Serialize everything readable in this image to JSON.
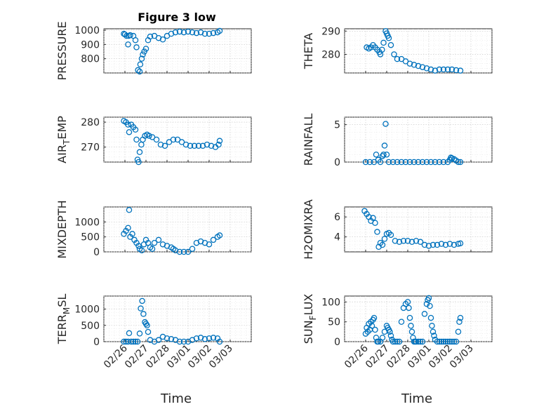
{
  "figure": {
    "title": "Figure 3 low",
    "xlabel": "Time",
    "marker_color": "#0072bd"
  },
  "chart_data": [
    {
      "type": "scatter",
      "ylabel_parts": [
        "PRESSURE"
      ],
      "ylim": [
        700,
        1010
      ],
      "yticks": [
        800,
        900,
        1000
      ],
      "xlim": [
        0,
        7
      ],
      "xticks": [
        1,
        2,
        3,
        4,
        5,
        6
      ],
      "xticklabels": [
        "02/26",
        "02/27",
        "02/28",
        "03/01",
        "03/02",
        "03/03"
      ],
      "grid": true,
      "x": [
        0.95,
        1.0,
        1.08,
        1.15,
        1.18,
        1.25,
        1.4,
        1.5,
        1.55,
        1.62,
        1.7,
        1.73,
        1.8,
        1.85,
        1.92,
        2.0,
        2.1,
        2.2,
        2.4,
        2.6,
        2.8,
        3.0,
        3.2,
        3.4,
        3.6,
        3.8,
        4.0,
        4.2,
        4.4,
        4.6,
        4.8,
        5.0,
        5.2,
        5.4,
        5.5
      ],
      "y": [
        975,
        970,
        960,
        900,
        960,
        965,
        960,
        930,
        880,
        720,
        710,
        760,
        800,
        830,
        850,
        870,
        930,
        955,
        960,
        945,
        935,
        960,
        975,
        985,
        990,
        985,
        990,
        985,
        980,
        985,
        975,
        975,
        980,
        985,
        995
      ]
    },
    {
      "type": "scatter",
      "ylabel_parts": [
        "THETA"
      ],
      "ylim": [
        272,
        291
      ],
      "yticks": [
        280,
        290
      ],
      "xlim": [
        0,
        7
      ],
      "xticks": [
        1,
        2,
        3,
        4,
        5,
        6
      ],
      "xticklabels": [
        "02/26",
        "02/27",
        "02/28",
        "03/01",
        "03/02",
        "03/03"
      ],
      "grid": true,
      "x": [
        1.05,
        1.15,
        1.25,
        1.35,
        1.45,
        1.55,
        1.65,
        1.7,
        1.78,
        1.85,
        1.95,
        2.0,
        2.05,
        2.1,
        2.2,
        2.35,
        2.5,
        2.7,
        2.9,
        3.1,
        3.3,
        3.5,
        3.7,
        3.9,
        4.1,
        4.3,
        4.5,
        4.7,
        4.9,
        5.1,
        5.3,
        5.5
      ],
      "y": [
        283,
        282.5,
        283,
        284,
        283,
        282,
        281,
        280,
        282,
        285,
        290,
        289,
        288,
        287,
        284,
        280,
        278,
        278,
        277,
        276,
        275.5,
        275,
        274.5,
        274,
        273.5,
        273,
        273.5,
        273.5,
        273.5,
        273.5,
        273.2,
        273
      ]
    },
    {
      "type": "scatter",
      "ylabel_parts": [
        "AIR",
        "T",
        "EMP"
      ],
      "ylim": [
        264,
        282
      ],
      "yticks": [
        270,
        280
      ],
      "xlim": [
        0,
        7
      ],
      "xticks": [
        1,
        2,
        3,
        4,
        5,
        6
      ],
      "xticklabels": [
        "02/26",
        "02/27",
        "02/28",
        "03/01",
        "03/02",
        "03/03"
      ],
      "grid": true,
      "x": [
        0.95,
        1.05,
        1.15,
        1.2,
        1.3,
        1.4,
        1.5,
        1.55,
        1.6,
        1.65,
        1.7,
        1.78,
        1.85,
        1.95,
        2.05,
        2.15,
        2.3,
        2.5,
        2.7,
        2.9,
        3.1,
        3.3,
        3.5,
        3.7,
        3.9,
        4.1,
        4.3,
        4.5,
        4.7,
        4.9,
        5.1,
        5.3,
        5.45,
        5.5
      ],
      "y": [
        280.5,
        280,
        279,
        276,
        279,
        278,
        277,
        273,
        265,
        264,
        268,
        271,
        273,
        274.5,
        275,
        274.5,
        274,
        273,
        271,
        270.5,
        272,
        273,
        273,
        272,
        271,
        270.5,
        270.5,
        270.5,
        270.5,
        271,
        270.5,
        270,
        271,
        272.5
      ]
    },
    {
      "type": "scatter",
      "ylabel_parts": [
        "RAINFALL"
      ],
      "ylim": [
        0,
        6
      ],
      "yticks": [
        0,
        5
      ],
      "xlim": [
        0,
        7
      ],
      "xticks": [
        1,
        2,
        3,
        4,
        5,
        6
      ],
      "xticklabels": [
        "02/26",
        "02/27",
        "02/28",
        "03/01",
        "03/02",
        "03/03"
      ],
      "grid": true,
      "x": [
        1.0,
        1.2,
        1.4,
        1.5,
        1.6,
        1.7,
        1.8,
        1.85,
        1.9,
        1.95,
        2.0,
        2.1,
        2.3,
        2.5,
        2.7,
        2.9,
        3.1,
        3.3,
        3.5,
        3.7,
        3.9,
        4.1,
        4.3,
        4.5,
        4.7,
        4.9,
        5.0,
        5.05,
        5.1,
        5.2,
        5.3,
        5.4,
        5.5
      ],
      "y": [
        0,
        0,
        0,
        1.0,
        0.3,
        0,
        0.8,
        1.0,
        2.2,
        5.1,
        1.0,
        0,
        0,
        0,
        0,
        0,
        0,
        0,
        0,
        0,
        0,
        0,
        0,
        0,
        0,
        0,
        0.3,
        0.6,
        0.5,
        0.4,
        0.2,
        0,
        0
      ]
    },
    {
      "type": "scatter",
      "ylabel_parts": [
        "MIXDEPTH"
      ],
      "ylim": [
        0,
        1500
      ],
      "yticks": [
        0,
        500,
        1000
      ],
      "xlim": [
        0,
        7
      ],
      "xticks": [
        1,
        2,
        3,
        4,
        5,
        6
      ],
      "xticklabels": [
        "02/26",
        "02/27",
        "02/28",
        "03/01",
        "03/02",
        "03/03"
      ],
      "grid": true,
      "x": [
        0.95,
        1.05,
        1.15,
        1.2,
        1.25,
        1.35,
        1.45,
        1.55,
        1.65,
        1.7,
        1.8,
        1.9,
        2.0,
        2.1,
        2.2,
        2.3,
        2.4,
        2.6,
        2.8,
        3.0,
        3.2,
        3.3,
        3.4,
        3.6,
        3.8,
        4.0,
        4.2,
        4.4,
        4.6,
        4.8,
        5.0,
        5.2,
        5.4,
        5.5
      ],
      "y": [
        600,
        700,
        800,
        1400,
        500,
        600,
        400,
        300,
        200,
        100,
        50,
        250,
        400,
        300,
        150,
        100,
        300,
        400,
        250,
        200,
        150,
        100,
        50,
        0,
        0,
        0,
        100,
        300,
        350,
        300,
        250,
        400,
        500,
        550
      ]
    },
    {
      "type": "scatter",
      "ylabel_parts": [
        "H2OMIXRA"
      ],
      "ylim": [
        2.5,
        7
      ],
      "yticks": [
        4,
        6
      ],
      "xlim": [
        0,
        7
      ],
      "xticks": [
        1,
        2,
        3,
        4,
        5,
        6
      ],
      "xticklabels": [
        "02/26",
        "02/27",
        "02/28",
        "03/01",
        "03/02",
        "03/03"
      ],
      "grid": true,
      "x": [
        0.95,
        1.05,
        1.15,
        1.25,
        1.35,
        1.45,
        1.55,
        1.62,
        1.7,
        1.8,
        1.9,
        2.0,
        2.1,
        2.2,
        2.4,
        2.6,
        2.8,
        3.0,
        3.2,
        3.4,
        3.6,
        3.8,
        4.0,
        4.2,
        4.4,
        4.6,
        4.8,
        5.0,
        5.2,
        5.4,
        5.5
      ],
      "y": [
        6.6,
        6.3,
        6.0,
        5.6,
        5.9,
        5.4,
        4.5,
        3.0,
        3.4,
        3.2,
        3.8,
        4.3,
        4.4,
        4.2,
        3.6,
        3.5,
        3.6,
        3.6,
        3.5,
        3.6,
        3.5,
        3.2,
        3.1,
        3.2,
        3.2,
        3.3,
        3.2,
        3.3,
        3.2,
        3.3,
        3.35
      ]
    },
    {
      "type": "scatter",
      "ylabel_parts": [
        "TERR",
        "M",
        "SL"
      ],
      "ylim": [
        0,
        1400
      ],
      "yticks": [
        0,
        500,
        1000
      ],
      "xlim": [
        0,
        7
      ],
      "xticks": [
        1,
        2,
        3,
        4,
        5,
        6
      ],
      "xticklabels": [
        "02/26",
        "02/27",
        "02/28",
        "03/01",
        "03/02",
        "03/03"
      ],
      "grid": true,
      "x": [
        0.95,
        1.05,
        1.15,
        1.2,
        1.3,
        1.4,
        1.5,
        1.6,
        1.7,
        1.75,
        1.82,
        1.88,
        1.95,
        2.0,
        2.05,
        2.1,
        2.2,
        2.4,
        2.6,
        2.8,
        3.0,
        3.2,
        3.4,
        3.6,
        3.8,
        4.0,
        4.2,
        4.4,
        4.6,
        4.8,
        5.0,
        5.2,
        5.4,
        5.5
      ],
      "y": [
        0,
        0,
        0,
        260,
        0,
        0,
        0,
        0,
        250,
        1020,
        1250,
        850,
        600,
        550,
        500,
        300,
        50,
        0,
        50,
        150,
        100,
        80,
        50,
        0,
        0,
        0,
        50,
        100,
        120,
        80,
        100,
        120,
        100,
        0
      ]
    },
    {
      "type": "scatter",
      "ylabel_parts": [
        "SUN",
        "F",
        "LUX"
      ],
      "ylim": [
        0,
        115
      ],
      "yticks": [
        0,
        50,
        100
      ],
      "xlim": [
        0,
        7
      ],
      "xticks": [
        1,
        2,
        3,
        4,
        5,
        6
      ],
      "xticklabels": [
        "02/26",
        "02/27",
        "02/28",
        "03/01",
        "03/02",
        "03/03"
      ],
      "grid": true,
      "x": [
        1.0,
        1.05,
        1.1,
        1.15,
        1.2,
        1.25,
        1.3,
        1.35,
        1.4,
        1.45,
        1.5,
        1.55,
        1.6,
        1.7,
        1.8,
        1.9,
        2.0,
        2.05,
        2.1,
        2.15,
        2.2,
        2.25,
        2.3,
        2.4,
        2.5,
        2.6,
        2.7,
        2.8,
        2.9,
        3.0,
        3.05,
        3.1,
        3.15,
        3.2,
        3.25,
        3.3,
        3.35,
        3.4,
        3.5,
        3.6,
        3.7,
        3.8,
        3.9,
        3.95,
        4.0,
        4.05,
        4.1,
        4.15,
        4.2,
        4.25,
        4.3,
        4.4,
        4.5,
        4.6,
        4.7,
        4.8,
        4.9,
        5.0,
        5.1,
        5.2,
        5.3,
        5.4,
        5.45,
        5.5
      ],
      "y": [
        20,
        35,
        25,
        45,
        30,
        50,
        40,
        55,
        60,
        30,
        10,
        0,
        0,
        0,
        10,
        25,
        40,
        35,
        30,
        25,
        15,
        5,
        0,
        0,
        0,
        0,
        50,
        85,
        95,
        100,
        85,
        60,
        40,
        25,
        10,
        0,
        0,
        0,
        0,
        0,
        0,
        70,
        95,
        105,
        110,
        90,
        60,
        40,
        25,
        15,
        5,
        0,
        0,
        0,
        0,
        0,
        0,
        0,
        0,
        0,
        0,
        25,
        50,
        60
      ]
    }
  ]
}
